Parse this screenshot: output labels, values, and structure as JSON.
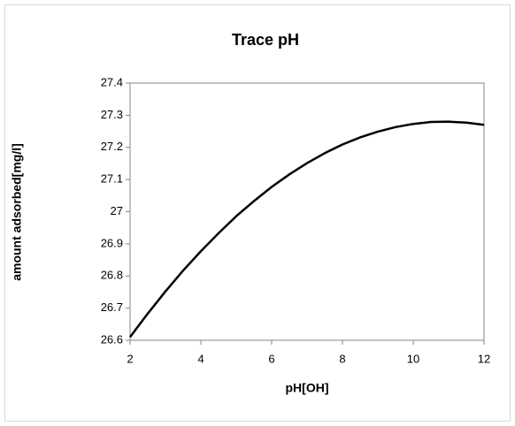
{
  "chart_data": {
    "type": "line",
    "title": "Trace pH",
    "xlabel": "pH[OH]",
    "ylabel": "amount adsorbed[mg/l]",
    "x": [
      2,
      2.5,
      3,
      3.5,
      4,
      4.5,
      5,
      5.5,
      6,
      6.5,
      7,
      7.5,
      8,
      8.5,
      9,
      9.5,
      10,
      10.5,
      11,
      11.5,
      12
    ],
    "series": [
      {
        "name": "amount adsorbed",
        "color": "#000000",
        "values": [
          26.61,
          26.683,
          26.752,
          26.817,
          26.877,
          26.933,
          26.986,
          27.033,
          27.077,
          27.116,
          27.151,
          27.182,
          27.209,
          27.231,
          27.249,
          27.263,
          27.273,
          27.279,
          27.28,
          27.277,
          27.27
        ]
      }
    ],
    "xlim": [
      2,
      12
    ],
    "xticks": [
      2,
      4,
      6,
      8,
      10,
      12
    ],
    "ylim": [
      26.6,
      27.4
    ],
    "yticks": [
      26.6,
      26.7,
      26.8,
      26.9,
      27,
      27.1,
      27.2,
      27.3,
      27.4
    ],
    "grid": false
  }
}
